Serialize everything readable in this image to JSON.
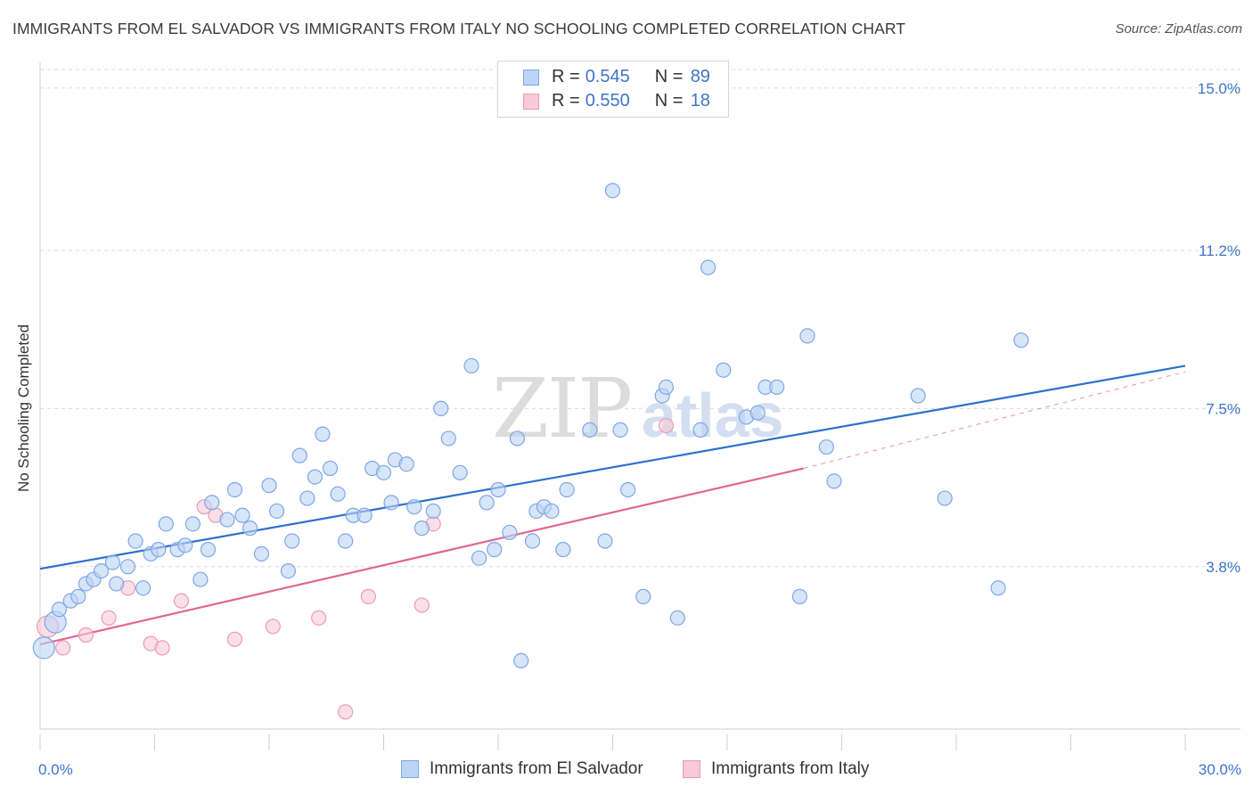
{
  "header": {
    "title": "IMMIGRANTS FROM EL SALVADOR VS IMMIGRANTS FROM ITALY NO SCHOOLING COMPLETED CORRELATION CHART",
    "source": "Source: ZipAtlas.com"
  },
  "watermark": {
    "text_zip": "ZIP",
    "text_atlas": "atlas"
  },
  "legend": {
    "rows": [
      {
        "r_label": "R =",
        "r_value": "0.545",
        "n_label": "N =",
        "n_value": "89"
      },
      {
        "r_label": "R =",
        "r_value": "0.550",
        "n_label": "N =",
        "n_value": "18"
      }
    ]
  },
  "bottom_legend": {
    "series1": "Immigrants from El Salvador",
    "series2": "Immigrants from Italy"
  },
  "chart_data": {
    "type": "scatter",
    "title": "IMMIGRANTS FROM EL SALVADOR VS IMMIGRANTS FROM ITALY NO SCHOOLING COMPLETED CORRELATION CHART",
    "ylabel": "No Schooling Completed",
    "xlim": [
      0,
      30
    ],
    "ylim": [
      0,
      15.6
    ],
    "x_tick_labels": [
      {
        "value": 0,
        "label": "0.0%"
      },
      {
        "value": 30,
        "label": "30.0%"
      }
    ],
    "y_tick_labels": [
      {
        "value": 3.8,
        "label": "3.8%"
      },
      {
        "value": 7.5,
        "label": "7.5%"
      },
      {
        "value": 11.2,
        "label": "11.2%"
      },
      {
        "value": 15.0,
        "label": "15.0%"
      }
    ],
    "grid": true,
    "legend_position": "top-center",
    "colors": {
      "series1_fill": "#bcd4f5",
      "series1_stroke": "#7ea7e6",
      "series1_line": "#2e6fcc",
      "series2_fill": "#f9c9d8",
      "series2_stroke": "#ec9ab5",
      "series2_line": "#e0678f",
      "tick_label": "#3e74c9"
    },
    "series": [
      {
        "name": "Immigrants from El Salvador",
        "R": 0.545,
        "N": 89,
        "trend": {
          "x": [
            0,
            30
          ],
          "y": [
            3.75,
            8.5
          ]
        },
        "points": [
          [
            0.1,
            1.9
          ],
          [
            0.4,
            2.5
          ],
          [
            0.5,
            2.8
          ],
          [
            0.8,
            3.0
          ],
          [
            1.0,
            3.1
          ],
          [
            1.2,
            3.4
          ],
          [
            1.4,
            3.5
          ],
          [
            1.6,
            3.7
          ],
          [
            1.9,
            3.9
          ],
          [
            2.0,
            3.4
          ],
          [
            2.3,
            3.8
          ],
          [
            2.5,
            4.4
          ],
          [
            2.7,
            3.3
          ],
          [
            2.9,
            4.1
          ],
          [
            3.1,
            4.2
          ],
          [
            3.3,
            4.8
          ],
          [
            3.6,
            4.2
          ],
          [
            3.8,
            4.3
          ],
          [
            4.0,
            4.8
          ],
          [
            4.2,
            3.5
          ],
          [
            4.4,
            4.2
          ],
          [
            4.5,
            5.3
          ],
          [
            4.9,
            4.9
          ],
          [
            5.1,
            5.6
          ],
          [
            5.3,
            5.0
          ],
          [
            5.5,
            4.7
          ],
          [
            5.8,
            4.1
          ],
          [
            6.0,
            5.7
          ],
          [
            6.2,
            5.1
          ],
          [
            6.5,
            3.7
          ],
          [
            6.6,
            4.4
          ],
          [
            6.8,
            6.4
          ],
          [
            7.0,
            5.4
          ],
          [
            7.2,
            5.9
          ],
          [
            7.4,
            6.9
          ],
          [
            7.6,
            6.1
          ],
          [
            7.8,
            5.5
          ],
          [
            8.0,
            4.4
          ],
          [
            8.2,
            5.0
          ],
          [
            8.5,
            5.0
          ],
          [
            8.7,
            6.1
          ],
          [
            9.0,
            6.0
          ],
          [
            9.2,
            5.3
          ],
          [
            9.3,
            6.3
          ],
          [
            9.6,
            6.2
          ],
          [
            9.8,
            5.2
          ],
          [
            10.0,
            4.7
          ],
          [
            10.3,
            5.1
          ],
          [
            10.5,
            7.5
          ],
          [
            10.7,
            6.8
          ],
          [
            11.0,
            6.0
          ],
          [
            11.3,
            8.5
          ],
          [
            11.5,
            4.0
          ],
          [
            11.7,
            5.3
          ],
          [
            11.9,
            4.2
          ],
          [
            12.0,
            5.6
          ],
          [
            12.3,
            4.6
          ],
          [
            12.5,
            6.8
          ],
          [
            12.6,
            1.6
          ],
          [
            12.9,
            4.4
          ],
          [
            13.0,
            5.1
          ],
          [
            13.2,
            5.2
          ],
          [
            13.4,
            5.1
          ],
          [
            13.7,
            4.2
          ],
          [
            13.8,
            5.6
          ],
          [
            14.4,
            7.0
          ],
          [
            14.8,
            4.4
          ],
          [
            15.0,
            12.6
          ],
          [
            15.2,
            7.0
          ],
          [
            15.4,
            5.6
          ],
          [
            15.8,
            3.1
          ],
          [
            16.3,
            7.8
          ],
          [
            16.4,
            8.0
          ],
          [
            16.7,
            2.6
          ],
          [
            17.3,
            7.0
          ],
          [
            17.5,
            10.8
          ],
          [
            17.9,
            8.4
          ],
          [
            18.5,
            7.3
          ],
          [
            18.8,
            7.4
          ],
          [
            19.0,
            8.0
          ],
          [
            19.3,
            8.0
          ],
          [
            19.9,
            3.1
          ],
          [
            20.1,
            9.2
          ],
          [
            20.6,
            6.6
          ],
          [
            20.8,
            5.8
          ],
          [
            23.0,
            7.8
          ],
          [
            23.7,
            5.4
          ],
          [
            25.1,
            3.3
          ],
          [
            25.7,
            9.1
          ]
        ]
      },
      {
        "name": "Immigrants from Italy",
        "R": 0.55,
        "N": 18,
        "trend": {
          "x": [
            0,
            20
          ],
          "y": [
            1.98,
            6.1
          ]
        },
        "trend_extension": {
          "x": [
            20,
            30
          ],
          "y": [
            6.1,
            8.36
          ]
        },
        "points": [
          [
            0.2,
            2.4
          ],
          [
            0.6,
            1.9
          ],
          [
            1.2,
            2.2
          ],
          [
            1.8,
            2.6
          ],
          [
            2.3,
            3.3
          ],
          [
            2.9,
            2.0
          ],
          [
            3.2,
            1.9
          ],
          [
            3.7,
            3.0
          ],
          [
            4.3,
            5.2
          ],
          [
            4.6,
            5.0
          ],
          [
            5.1,
            2.1
          ],
          [
            6.1,
            2.4
          ],
          [
            7.3,
            2.6
          ],
          [
            8.0,
            0.4
          ],
          [
            8.6,
            3.1
          ],
          [
            10.0,
            2.9
          ],
          [
            10.3,
            4.8
          ],
          [
            16.4,
            7.1
          ]
        ]
      }
    ]
  }
}
